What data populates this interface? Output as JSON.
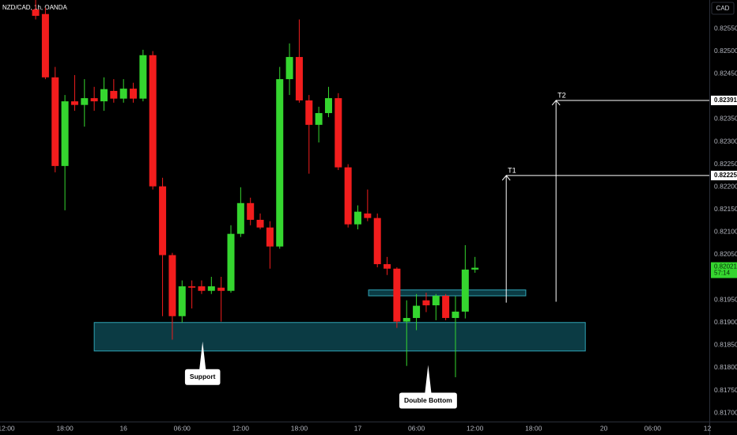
{
  "chart_data": {
    "type": "candlestick",
    "title": "NZD/CAD, 1h, OANDA",
    "currency": "CAD",
    "up_color": "#35d62f",
    "down_color": "#f21d1d",
    "x": [
      3,
      4,
      5,
      6,
      7,
      8,
      9,
      10,
      11,
      12,
      13,
      14,
      15,
      16,
      17,
      18,
      19,
      20,
      21,
      22,
      23,
      24,
      25,
      26,
      27,
      28,
      29,
      30,
      31,
      32,
      33,
      34,
      35,
      36,
      37,
      38,
      39,
      40,
      41,
      42,
      43,
      44,
      45,
      46,
      47,
      48
    ],
    "open": [
      0.82592,
      0.82582,
      0.82442,
      0.82246,
      0.82389,
      0.82381,
      0.82396,
      0.82389,
      0.82412,
      0.82395,
      0.82417,
      0.82395,
      0.82491,
      0.82201,
      0.82049,
      0.81914,
      0.8198,
      0.8198,
      0.8197,
      0.81977,
      0.8197,
      0.82096,
      0.82164,
      0.82127,
      0.8211,
      0.82068,
      0.82438,
      0.82487,
      0.82391,
      0.82337,
      0.82363,
      0.82396,
      0.82243,
      0.82117,
      0.82141,
      0.82131,
      0.82029,
      0.82019,
      0.81902,
      0.8191,
      0.81949,
      0.81938,
      0.81959,
      0.8191,
      0.81924,
      0.82017
    ],
    "high": [
      0.82613,
      0.82596,
      0.82465,
      0.82403,
      0.82447,
      0.82438,
      0.82421,
      0.82442,
      0.82438,
      0.82438,
      0.8243,
      0.82503,
      0.825,
      0.8222,
      0.82054,
      0.81993,
      0.81993,
      0.81993,
      0.82001,
      0.82001,
      0.82115,
      0.82199,
      0.82176,
      0.82141,
      0.82124,
      0.82465,
      0.82517,
      0.8257,
      0.82403,
      0.82377,
      0.82421,
      0.82407,
      0.8225,
      0.82159,
      0.82194,
      0.82141,
      0.82045,
      0.82022,
      0.81949,
      0.81963,
      0.81966,
      0.81963,
      0.81963,
      0.81958,
      0.82071,
      0.82045
    ],
    "low": [
      0.8257,
      0.82438,
      0.82232,
      0.82148,
      0.82368,
      0.82333,
      0.82368,
      0.82368,
      0.82386,
      0.82386,
      0.82386,
      0.82389,
      0.82194,
      0.81914,
      0.81862,
      0.819,
      0.81931,
      0.81963,
      0.81963,
      0.81902,
      0.81966,
      0.82089,
      0.82115,
      0.82106,
      0.82019,
      0.82063,
      0.82403,
      0.82386,
      0.82229,
      0.82298,
      0.82354,
      0.82237,
      0.8211,
      0.82106,
      0.82124,
      0.82022,
      0.82005,
      0.81888,
      0.81804,
      0.81883,
      0.81923,
      0.81905,
      0.81905,
      0.81779,
      0.81909,
      0.8201
    ],
    "close": [
      0.82578,
      0.82442,
      0.82246,
      0.82389,
      0.82381,
      0.82396,
      0.82389,
      0.82416,
      0.82395,
      0.82417,
      0.82395,
      0.82491,
      0.82201,
      0.82049,
      0.81914,
      0.8198,
      0.81977,
      0.8197,
      0.8198,
      0.8197,
      0.82096,
      0.82164,
      0.82127,
      0.8211,
      0.82068,
      0.82438,
      0.82487,
      0.82391,
      0.82337,
      0.82363,
      0.82396,
      0.82243,
      0.82117,
      0.82145,
      0.82131,
      0.82029,
      0.82019,
      0.81902,
      0.8191,
      0.81937,
      0.81938,
      0.81959,
      0.8191,
      0.81924,
      0.82017,
      0.82021
    ],
    "xlim": [
      -0.65,
      72
    ],
    "ylim": [
      0.81674,
      0.82613
    ],
    "xticks": [
      {
        "value": 0,
        "label": "12:00"
      },
      {
        "value": 6,
        "label": "18:00"
      },
      {
        "value": 12,
        "label": "16"
      },
      {
        "value": 18,
        "label": "06:00"
      },
      {
        "value": 24,
        "label": "12:00"
      },
      {
        "value": 30,
        "label": "18:00"
      },
      {
        "value": 36,
        "label": "17"
      },
      {
        "value": 42,
        "label": "06:00"
      },
      {
        "value": 48,
        "label": "12:00"
      },
      {
        "value": 54,
        "label": "18:00"
      },
      {
        "value": 61.2,
        "label": "20"
      },
      {
        "value": 66.2,
        "label": "06:00"
      },
      {
        "value": 71.8,
        "label": "12"
      }
    ],
    "yticks": [
      {
        "value": 0.8255,
        "label": "0.82550"
      },
      {
        "value": 0.825,
        "label": "0.82500"
      },
      {
        "value": 0.8245,
        "label": "0.82450"
      },
      {
        "value": 0.8235,
        "label": "0.82350"
      },
      {
        "value": 0.823,
        "label": "0.82300"
      },
      {
        "value": 0.8225,
        "label": "0.82250"
      },
      {
        "value": 0.822,
        "label": "0.82200"
      },
      {
        "value": 0.8215,
        "label": "0.82150"
      },
      {
        "value": 0.821,
        "label": "0.82100"
      },
      {
        "value": 0.8205,
        "label": "0.82050"
      },
      {
        "value": 0.8195,
        "label": "0.81950"
      },
      {
        "value": 0.819,
        "label": "0.81900"
      },
      {
        "value": 0.8185,
        "label": "0.81850"
      },
      {
        "value": 0.818,
        "label": "0.81800"
      },
      {
        "value": 0.8175,
        "label": "0.81750"
      },
      {
        "value": 0.817,
        "label": "0.81700"
      }
    ],
    "zones": [
      {
        "x": [
          9,
          59.3
        ],
        "y": [
          0.81837,
          0.819
        ],
        "color": "#0b3b44"
      },
      {
        "x": [
          37.1,
          53.2
        ],
        "y": [
          0.81959,
          0.81972
        ],
        "color": "#0b3b44"
      }
    ],
    "targets": [
      {
        "label": "T1",
        "value": 0.82225,
        "x": 51.2,
        "from": 0.81944
      },
      {
        "label": "T2",
        "value": 0.82391,
        "x": 56.3,
        "from": 0.81946
      }
    ],
    "annotations": [
      {
        "text": "Support",
        "x": 20.1,
        "y": 0.81858
      },
      {
        "text": "Double Bottom",
        "x": 43.2,
        "y": 0.81806
      }
    ],
    "last_price": {
      "value": 0.82021,
      "countdown": "57:14"
    }
  }
}
